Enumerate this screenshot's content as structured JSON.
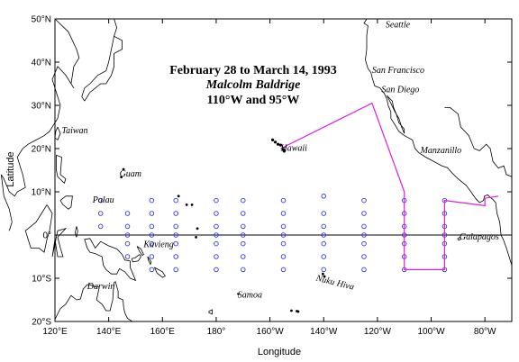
{
  "title": {
    "line1": "February 28 to March 14, 1993",
    "line2": "Malcolm Baldrige",
    "line3": "110°W and 95°W"
  },
  "axes": {
    "xlabel": "Longitude",
    "ylabel": "Latitude",
    "x_ticks": [
      {
        "lon": 120,
        "label": "120°E"
      },
      {
        "lon": 140,
        "label": "140°E"
      },
      {
        "lon": 160,
        "label": "160°E"
      },
      {
        "lon": 180,
        "label": "180°"
      },
      {
        "lon": 200,
        "label": "160°W"
      },
      {
        "lon": 220,
        "label": "140°W"
      },
      {
        "lon": 240,
        "label": "120°W"
      },
      {
        "lon": 260,
        "label": "100°W"
      },
      {
        "lon": 280,
        "label": "80°W"
      }
    ],
    "y_ticks": [
      {
        "lat": 50,
        "label": "50°N"
      },
      {
        "lat": 40,
        "label": "40°N"
      },
      {
        "lat": 30,
        "label": "30°N"
      },
      {
        "lat": 20,
        "label": "20°N"
      },
      {
        "lat": 10,
        "label": "10°N"
      },
      {
        "lat": 0,
        "label": "0°"
      },
      {
        "lat": -10,
        "label": "10°S"
      },
      {
        "lat": -20,
        "label": "20°S"
      }
    ],
    "lon_range": [
      120,
      290
    ],
    "lat_range": [
      -20,
      50
    ]
  },
  "place_labels": [
    {
      "text": "Seattle",
      "lon": 243,
      "lat": 48
    },
    {
      "text": "San Francisco",
      "lon": 238,
      "lat": 37.5
    },
    {
      "text": "San Diego",
      "lon": 241.5,
      "lat": 33
    },
    {
      "text": "Taiwan",
      "lon": 122.5,
      "lat": 23.5
    },
    {
      "text": "Hawaii",
      "lon": 204,
      "lat": 19.5
    },
    {
      "text": "Manzanillo",
      "lon": 256,
      "lat": 19
    },
    {
      "text": "Guam",
      "lon": 144,
      "lat": 13.5
    },
    {
      "text": "Palau",
      "lon": 134,
      "lat": 7.5
    },
    {
      "text": "Kavieng",
      "lon": 153,
      "lat": -2.8
    },
    {
      "text": "Galapagos",
      "lon": 270.5,
      "lat": -1
    },
    {
      "text": "Darwin",
      "lon": 132,
      "lat": -12.5
    },
    {
      "text": "Samoa",
      "lon": 188,
      "lat": -14.5
    },
    {
      "text": "Nuku Hiva",
      "lon": 217,
      "lat": -10.5
    }
  ],
  "cruise_track": [
    [
      204,
      20
    ],
    [
      238,
      30.5
    ],
    [
      250,
      10
    ],
    [
      250,
      -8
    ],
    [
      265,
      -8
    ],
    [
      265,
      8
    ],
    [
      280,
      6.8
    ],
    [
      280,
      8.5
    ],
    [
      285,
      9
    ]
  ],
  "buoy_lines": [
    {
      "lon": 137,
      "lats": [
        8,
        5,
        2
      ]
    },
    {
      "lon": 147,
      "lats": [
        5,
        2,
        0,
        -2,
        -5
      ]
    },
    {
      "lon": 156,
      "lats": [
        8,
        5,
        2,
        0,
        -2,
        -5,
        -8
      ]
    },
    {
      "lon": 165,
      "lats": [
        8,
        5,
        2,
        0,
        -2,
        -5,
        -8
      ]
    },
    {
      "lon": 180,
      "lats": [
        8,
        5,
        2,
        0,
        -2,
        -5,
        -8
      ]
    },
    {
      "lon": 190,
      "lats": [
        8,
        5,
        2,
        0,
        -2,
        -5,
        -8
      ]
    },
    {
      "lon": 205,
      "lats": [
        8,
        5,
        2,
        0,
        -2,
        -5,
        -8
      ]
    },
    {
      "lon": 220,
      "lats": [
        9,
        5,
        2,
        0,
        -2,
        -5,
        -8
      ]
    },
    {
      "lon": 235,
      "lats": [
        8,
        5,
        2,
        0,
        -2,
        -5,
        -8
      ]
    },
    {
      "lon": 250,
      "lats": [
        8,
        5,
        2,
        0,
        -2,
        -5,
        -8
      ]
    },
    {
      "lon": 265,
      "lats": [
        8,
        5,
        2,
        0,
        -2,
        -5,
        -8
      ]
    }
  ],
  "colors": {
    "track": "#e020e0",
    "buoy": "#3333ee",
    "land": "#000000",
    "frame": "#000000"
  }
}
